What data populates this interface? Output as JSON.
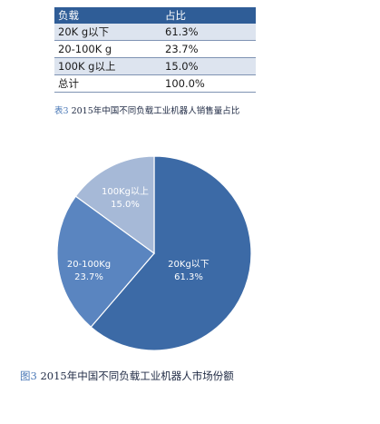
{
  "table": {
    "headers": [
      "负载",
      "占比"
    ],
    "rows": [
      [
        "20K g以下",
        "61.3%"
      ],
      [
        "20-100K g",
        "23.7%"
      ],
      [
        "100K g以上",
        "15.0%"
      ],
      [
        "总计",
        "100.0%"
      ]
    ],
    "caption_label": "表3",
    "caption_text": " 2015年中国不同负载工业机器人销售量占比"
  },
  "figure": {
    "caption_label": "图3",
    "caption_text": " 2015年中国不同负载工业机器人市场份额"
  },
  "chart_data": {
    "type": "pie",
    "slices": [
      {
        "label": "20Kg以下",
        "value": 61.3,
        "value_label": "61.3%",
        "color": "#3c6aa6"
      },
      {
        "label": "20-100Kg",
        "value": 23.7,
        "value_label": "23.7%",
        "color": "#5a85c0"
      },
      {
        "label": "100Kg以上",
        "value": 15.0,
        "value_label": "15.0%",
        "color": "#a6b9d7"
      }
    ],
    "start": "12 o'clock",
    "direction": "clockwise",
    "legend": "none"
  }
}
